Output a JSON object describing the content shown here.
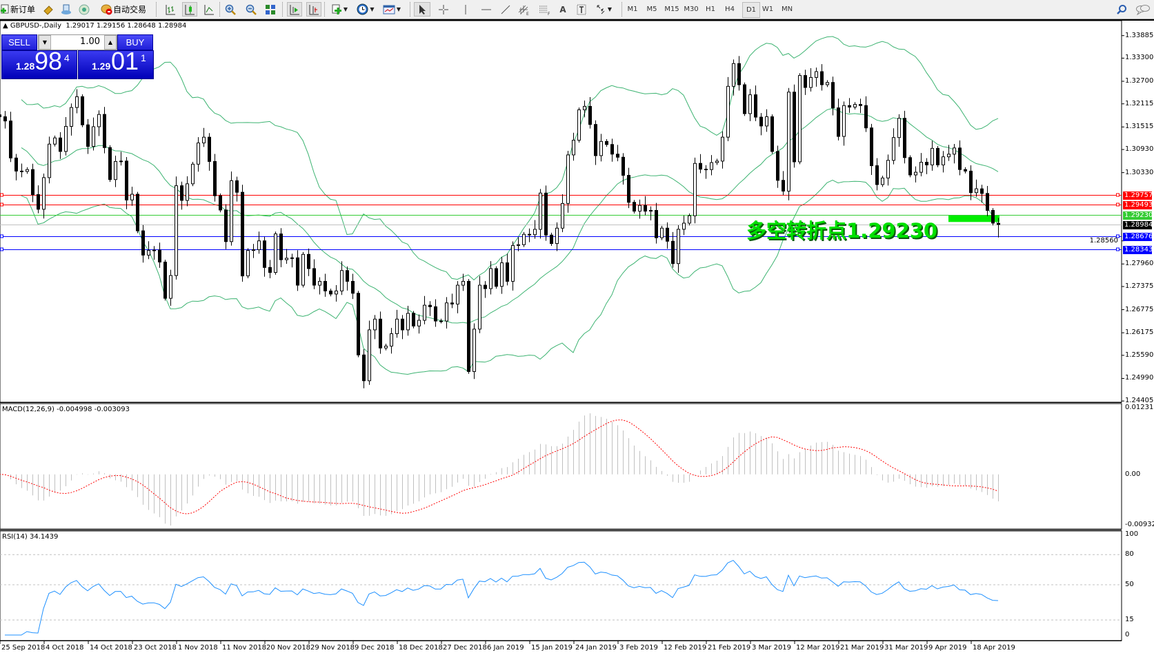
{
  "toolbar": {
    "new_order_label": "新订单",
    "auto_trading_label": "自动交易",
    "timeframes": [
      "M1",
      "M5",
      "M15",
      "M30",
      "H1",
      "H4",
      "D1",
      "W1",
      "MN"
    ],
    "active_timeframe": "D1"
  },
  "chart": {
    "title": "GBPUSD-,Daily",
    "ohlc_text": "1.29017 1.29156 1.28648 1.28984",
    "trade_panel": {
      "sell_label": "SELL",
      "buy_label": "BUY",
      "lot": "1.00",
      "sell_price": {
        "small": "1.28",
        "big": "98",
        "sup": "4"
      },
      "buy_price": {
        "small": "1.29",
        "big": "01",
        "sup": "1"
      }
    },
    "annotation": "多空转折点1.29230",
    "price_ticks": [
      "1.33885",
      "1.33300",
      "1.32700",
      "1.32115",
      "1.31515",
      "1.30930",
      "1.30330",
      "1.28560",
      "1.27960",
      "1.27375",
      "1.26775",
      "1.26175",
      "1.25590",
      "1.24990",
      "1.24405"
    ],
    "horizontal_lines": [
      {
        "price": "1.29757",
        "color": "#ff0000"
      },
      {
        "price": "1.29493",
        "color": "#ff0000"
      },
      {
        "price": "1.29230",
        "color": "#33cc33"
      },
      {
        "price": "1.28984",
        "color": "#000000"
      },
      {
        "price": "1.28676",
        "color": "#0000ff"
      },
      {
        "price": "1.28343",
        "color": "#0000ff"
      }
    ],
    "time_labels": [
      "25 Sep 2018",
      "4 Oct 2018",
      "14 Oct 2018",
      "23 Oct 2018",
      "1 Nov 2018",
      "11 Nov 2018",
      "20 Nov 2018",
      "29 Nov 2018",
      "9 Dec 2018",
      "18 Dec 2018",
      "27 Dec 2018",
      "6 Jan 2019",
      "15 Jan 2019",
      "24 Jan 2019",
      "3 Feb 2019",
      "12 Feb 2019",
      "21 Feb 2019",
      "3 Mar 2019",
      "12 Mar 2019",
      "21 Mar 2019",
      "31 Mar 2019",
      "9 Apr 2019",
      "18 Apr 2019"
    ]
  },
  "macd": {
    "title": "MACD(12,26,9) -0.004998 -0.003093",
    "ticks": [
      "0.012312",
      "0.00",
      "-0.009328"
    ]
  },
  "rsi": {
    "title": "RSI(14) 34.1439",
    "ticks": [
      "100",
      "80",
      "50",
      "15",
      "0"
    ]
  },
  "colors": {
    "bands": "#3cb371",
    "rsi": "#1e90ff",
    "macd_signal": "#ff0000",
    "macd_hist": "#c0c0c0",
    "highlight": "#00ee00"
  },
  "chart_data": {
    "type": "candlestick",
    "symbol": "GBPUSD-",
    "timeframe": "Daily",
    "ylim": [
      1.24405,
      1.33885
    ],
    "highlight_zone": [
      1.2905,
      1.2923
    ],
    "close": [
      1.3178,
      1.3167,
      1.3071,
      1.3037,
      1.3036,
      1.3041,
      1.2976,
      1.2938,
      1.302,
      1.3107,
      1.3123,
      1.3088,
      1.3153,
      1.3202,
      1.323,
      1.3157,
      1.3101,
      1.3152,
      1.3184,
      1.3098,
      1.3015,
      1.3062,
      1.3063,
      1.2962,
      1.2977,
      1.2882,
      1.2819,
      1.2831,
      1.2832,
      1.2801,
      1.2707,
      1.2766,
      1.2999,
      1.2961,
      1.3004,
      1.3055,
      1.311,
      1.3125,
      1.3062,
      1.2973,
      1.2936,
      1.2854,
      1.3012,
      1.2982,
      1.2765,
      1.2831,
      1.2833,
      1.2856,
      1.2787,
      1.2774,
      1.2874,
      1.2807,
      1.2811,
      1.2812,
      1.2741,
      1.2821,
      1.2784,
      1.2741,
      1.2751,
      1.2726,
      1.2718,
      1.2726,
      1.2779,
      1.2751,
      1.272,
      1.256,
      1.2493,
      1.2625,
      1.2653,
      1.2578,
      1.2583,
      1.2615,
      1.2653,
      1.2625,
      1.2668,
      1.2635,
      1.265,
      1.2689,
      1.2685,
      1.2648,
      1.2648,
      1.2695,
      1.2692,
      1.2741,
      1.2751,
      1.2517,
      1.2627,
      1.2741,
      1.2732,
      1.2784,
      1.2738,
      1.2799,
      1.2751,
      1.2844,
      1.2846,
      1.2873,
      1.2872,
      1.2886,
      1.298,
      1.2871,
      1.2849,
      1.2889,
      1.2953,
      1.3079,
      1.3117,
      1.3196,
      1.3205,
      1.3158,
      1.3077,
      1.3114,
      1.3106,
      1.3081,
      1.3073,
      1.3026,
      1.2956,
      1.2933,
      1.2948,
      1.2933,
      1.2935,
      1.2864,
      1.2889,
      1.2855,
      1.2797,
      1.2886,
      1.2902,
      1.2921,
      1.3057,
      1.3042,
      1.3041,
      1.3059,
      1.3063,
      1.3125,
      1.3257,
      1.3316,
      1.3261,
      1.3186,
      1.3235,
      1.3177,
      1.3154,
      1.3178,
      1.3088,
      1.3013,
      1.2985,
      1.3242,
      1.3061,
      1.3285,
      1.3254,
      1.328,
      1.3295,
      1.3261,
      1.3267,
      1.3201,
      1.3127,
      1.3207,
      1.3203,
      1.321,
      1.3207,
      1.3149,
      1.3051,
      1.3002,
      1.3019,
      1.3065,
      1.3124,
      1.3174,
      1.3072,
      1.3027,
      1.3034,
      1.306,
      1.3053,
      1.3096,
      1.3053,
      1.3074,
      1.3081,
      1.3097,
      1.3041,
      1.3037,
      1.2981,
      1.2991,
      1.2979,
      1.2935,
      1.2902,
      1.28984
    ],
    "last_bar": {
      "open": 1.29017,
      "high": 1.29156,
      "low": 1.28648,
      "close": 1.28984
    },
    "indicators": [
      "Bollinger Bands",
      "MACD(12,26,9)",
      "RSI(14)"
    ]
  }
}
